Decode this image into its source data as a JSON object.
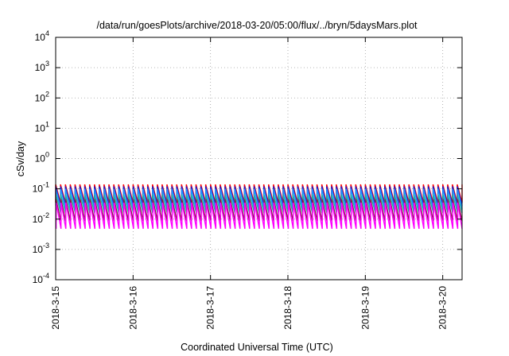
{
  "chart_data": {
    "type": "line",
    "title": "/data/run/goesPlots/archive/2018-03-20/05:00/flux/../bryn/5daysMars.plot",
    "xlabel": "Coordinated Universal Time (UTC)",
    "ylabel": "cSv/day",
    "yscale": "log",
    "ylim": [
      0.0001,
      10000
    ],
    "xlim": [
      "2018-03-15T00:00",
      "2018-03-20T06:00"
    ],
    "grid": true,
    "x_ticks": [
      "2018-3-15",
      "2018-3-16",
      "2018-3-17",
      "2018-3-18",
      "2018-3-19",
      "2018-3-20"
    ],
    "y_ticks": [
      {
        "base": "10",
        "exp": "-4"
      },
      {
        "base": "10",
        "exp": "-3"
      },
      {
        "base": "10",
        "exp": "-2"
      },
      {
        "base": "10",
        "exp": "-1"
      },
      {
        "base": "10",
        "exp": "0"
      },
      {
        "base": "10",
        "exp": "1"
      },
      {
        "base": "10",
        "exp": "2"
      },
      {
        "base": "10",
        "exp": "3"
      },
      {
        "base": "10",
        "exp": "4"
      }
    ],
    "sawtooth_period_hours": 1.5,
    "series": [
      {
        "color": "#ff0000",
        "peak": 0.14,
        "trough": 0.035
      },
      {
        "color": "#1a1acc",
        "peak": 0.12,
        "trough": 0.028
      },
      {
        "color": "#1e90ff",
        "peak": 0.1,
        "trough": 0.022
      },
      {
        "color": "#20b2aa",
        "peak": 0.065,
        "trough": 0.016
      },
      {
        "color": "#8b1a4a",
        "peak": 0.045,
        "trough": 0.0085
      },
      {
        "color": "#ff00ff",
        "peak": 0.035,
        "trough": 0.0048
      }
    ]
  }
}
